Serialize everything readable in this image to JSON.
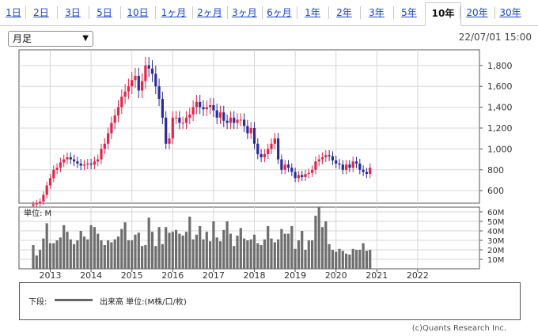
{
  "tabs": [
    {
      "label": "1日",
      "active": false
    },
    {
      "label": "2日",
      "active": false
    },
    {
      "label": "3日",
      "active": false
    },
    {
      "label": "5日",
      "active": false
    },
    {
      "label": "10日",
      "active": false
    },
    {
      "label": "1ヶ月",
      "active": false
    },
    {
      "label": "2ヶ月",
      "active": false
    },
    {
      "label": "3ヶ月",
      "active": false
    },
    {
      "label": "6ヶ月",
      "active": false
    },
    {
      "label": "1年",
      "active": false
    },
    {
      "label": "2年",
      "active": false
    },
    {
      "label": "3年",
      "active": false
    },
    {
      "label": "5年",
      "active": false
    },
    {
      "label": "10年",
      "active": true
    },
    {
      "label": "20年",
      "active": false
    },
    {
      "label": "30年",
      "active": false
    }
  ],
  "period_select": {
    "value": "月足"
  },
  "timestamp": "22/07/01 15:00",
  "legend": {
    "prefix": "下段:",
    "label": "出来高 単位:(M株/口/枚)"
  },
  "copyright": "(c)Quants Research Inc.",
  "colors": {
    "up": "#e4244b",
    "down": "#2b2b9a",
    "volume": "#6e6e6e",
    "grid": "#d6d6d6"
  },
  "chart_data": [
    {
      "type": "candlestick",
      "interval": "monthly",
      "y_ticks": [
        600,
        800,
        1000,
        1200,
        1400,
        1600,
        1800
      ],
      "ylim": [
        480,
        1950
      ],
      "grid": true,
      "x_ticks": [
        "2013",
        "2014",
        "2015",
        "2016",
        "2017",
        "2018",
        "2019",
        "2020",
        "2021",
        "2022"
      ],
      "start": "2012-08",
      "closes": [
        470,
        480,
        495,
        560,
        650,
        720,
        800,
        820,
        870,
        900,
        920,
        900,
        880,
        860,
        840,
        850,
        860,
        850,
        880,
        900,
        1000,
        1050,
        1150,
        1250,
        1320,
        1400,
        1500,
        1550,
        1600,
        1660,
        1700,
        1560,
        1650,
        1800,
        1770,
        1720,
        1600,
        1480,
        1300,
        1050,
        1100,
        1300,
        1300,
        1250,
        1250,
        1300,
        1330,
        1400,
        1450,
        1400,
        1380,
        1400,
        1420,
        1370,
        1300,
        1350,
        1270,
        1250,
        1300,
        1250,
        1280,
        1280,
        1220,
        1150,
        1200,
        1050,
        950,
        920,
        950,
        1000,
        1050,
        1100,
        900,
        800,
        850,
        820,
        780,
        720,
        750,
        730,
        760,
        770,
        800,
        880,
        900,
        920,
        940,
        930,
        890,
        860,
        850,
        800,
        850,
        820,
        880,
        860,
        800,
        780,
        760,
        820
      ],
      "ohlc_sample_note": "",
      "volume": {
        "unit_label": "単位: M",
        "y_ticks_labels": [
          "10M",
          "20M",
          "30M",
          "40M",
          "50M",
          "60M"
        ],
        "y_ticks": [
          10,
          20,
          30,
          40,
          50,
          60
        ],
        "ylim": [
          0,
          65
        ],
        "values": [
          25,
          14,
          20,
          32,
          48,
          27,
          27,
          30,
          33,
          46,
          39,
          31,
          26,
          30,
          40,
          34,
          31,
          46,
          44,
          37,
          30,
          25,
          30,
          28,
          31,
          34,
          42,
          49,
          30,
          30,
          36,
          38,
          24,
          25,
          54,
          39,
          24,
          44,
          26,
          44,
          38,
          39,
          41,
          37,
          35,
          39,
          55,
          31,
          36,
          45,
          31,
          39,
          29,
          50,
          33,
          29,
          41,
          50,
          37,
          24,
          35,
          43,
          32,
          30,
          31,
          36,
          27,
          25,
          31,
          45,
          32,
          28,
          31,
          42,
          37,
          37,
          45,
          21,
          30,
          40,
          20,
          30,
          30,
          56,
          65,
          44,
          50,
          26,
          20,
          18,
          21,
          19,
          16,
          15,
          21,
          20,
          20,
          27,
          19,
          20
        ]
      }
    }
  ]
}
